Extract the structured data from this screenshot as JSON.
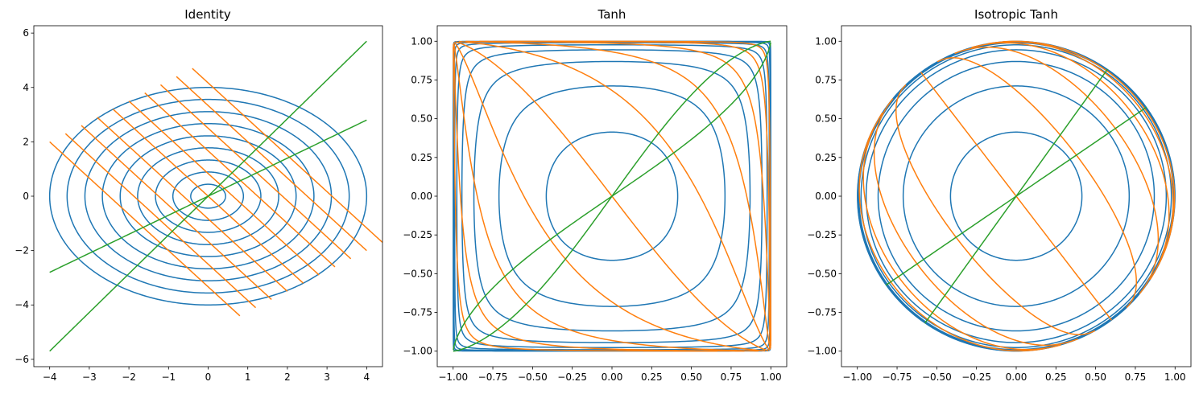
{
  "chart_data": [
    {
      "type": "line",
      "title": "Identity",
      "transform": "identity",
      "xlim": [
        -4.4,
        4.4
      ],
      "ylim": [
        -6.27,
        6.27
      ],
      "xticks": [
        -4,
        -3,
        -2,
        -1,
        0,
        1,
        2,
        3,
        4
      ],
      "xtick_labels": [
        "−4",
        "−3",
        "−2",
        "−1",
        "0",
        "1",
        "2",
        "3",
        "4"
      ],
      "yticks": [
        -6,
        -4,
        -2,
        0,
        2,
        4,
        6
      ],
      "ytick_labels": [
        "−6",
        "−4",
        "−2",
        "0",
        "2",
        "4",
        "6"
      ],
      "grid": false,
      "series": [
        {
          "color": "#1f77b4",
          "shape": "ellipses",
          "radii_x": [
            0.44,
            0.89,
            1.33,
            1.78,
            2.22,
            2.67,
            3.11,
            3.56,
            4.0
          ],
          "radii_y": [
            0.44,
            0.89,
            1.33,
            1.78,
            2.22,
            2.67,
            3.11,
            3.56,
            4.0
          ],
          "y_scale": 1.0
        },
        {
          "color": "#ff7f0e",
          "shape": "parallel-segments",
          "start_x": [
            -4.0,
            -3.6,
            -3.2,
            -2.8,
            -2.4,
            -2.0,
            -1.6,
            -1.2,
            -0.8,
            -0.4
          ],
          "start_y": [
            2.0,
            2.3,
            2.6,
            2.9,
            3.2,
            3.5,
            3.8,
            4.1,
            4.4,
            4.7
          ],
          "end_x": [
            0.8,
            1.2,
            1.6,
            2.0,
            2.4,
            2.8,
            3.2,
            3.6,
            4.0,
            4.4
          ],
          "end_y": [
            -4.4,
            -4.1,
            -3.8,
            -3.5,
            -3.2,
            -2.9,
            -2.6,
            -2.3,
            -2.0,
            -1.7
          ]
        },
        {
          "color": "#2ca02c",
          "shape": "lines-through-origin",
          "slopes": [
            1.425,
            0.7
          ],
          "x_range": [
            -4,
            4
          ]
        }
      ]
    },
    {
      "type": "line",
      "title": "Tanh",
      "transform": "tanh",
      "xlim": [
        -1.1,
        1.1
      ],
      "ylim": [
        -1.1,
        1.1
      ],
      "xticks": [
        -1.0,
        -0.75,
        -0.5,
        -0.25,
        0.0,
        0.25,
        0.5,
        0.75,
        1.0
      ],
      "xtick_labels": [
        "−1.00",
        "−0.75",
        "−0.50",
        "−0.25",
        "0.00",
        "0.25",
        "0.50",
        "0.75",
        "1.00"
      ],
      "yticks": [
        -1.0,
        -0.75,
        -0.5,
        -0.25,
        0.0,
        0.25,
        0.5,
        0.75,
        1.0
      ],
      "ytick_labels": [
        "−1.00",
        "−0.75",
        "−0.50",
        "−0.25",
        "0.00",
        "0.25",
        "0.50",
        "0.75",
        "1.00"
      ],
      "grid": false
    },
    {
      "type": "line",
      "title": "Isotropic Tanh",
      "transform": "isotropic-tanh",
      "xlim": [
        -1.1,
        1.1
      ],
      "ylim": [
        -1.1,
        1.1
      ],
      "xticks": [
        -1.0,
        -0.75,
        -0.5,
        -0.25,
        0.0,
        0.25,
        0.5,
        0.75,
        1.0
      ],
      "xtick_labels": [
        "−1.00",
        "−0.75",
        "−0.50",
        "−0.25",
        "0.00",
        "0.25",
        "0.50",
        "0.75",
        "1.00"
      ],
      "yticks": [
        -1.0,
        -0.75,
        -0.5,
        -0.25,
        0.0,
        0.25,
        0.5,
        0.75,
        1.0
      ],
      "ytick_labels": [
        "−1.00",
        "−0.75",
        "−0.50",
        "−0.25",
        "0.00",
        "0.25",
        "0.50",
        "0.75",
        "1.00"
      ],
      "grid": false
    }
  ]
}
